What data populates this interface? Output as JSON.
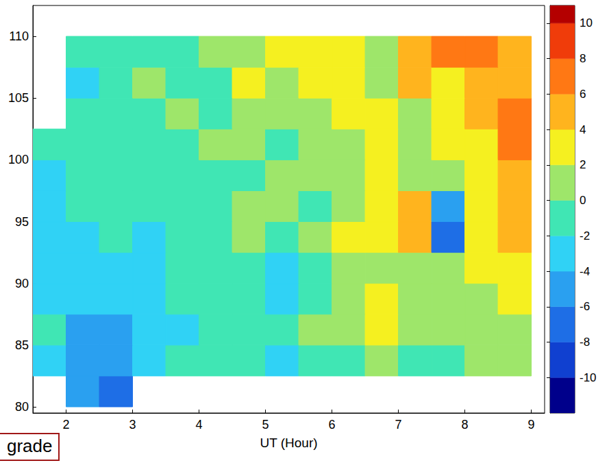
{
  "chart_data": {
    "type": "heatmap",
    "x_label": "UT (Hour)",
    "x": [
      1.75,
      2.25,
      2.75,
      3.25,
      3.75,
      4.25,
      4.75,
      5.25,
      5.75,
      6.25,
      6.75,
      7.25,
      7.75,
      8.25,
      8.75
    ],
    "y": [
      81.25,
      83.75,
      86.25,
      88.75,
      91.25,
      93.75,
      96.25,
      98.75,
      101.25,
      103.75,
      106.25,
      108.75
    ],
    "cells": [
      [
        null,
        -6,
        -7,
        null,
        null,
        null,
        null,
        null,
        null,
        null,
        null,
        null,
        null,
        null,
        null
      ],
      [
        -3,
        -5,
        -6,
        -4,
        -2,
        -2,
        -2,
        -3,
        -2,
        -1,
        0,
        -1,
        -1,
        0,
        1
      ],
      [
        -2,
        -5,
        -5,
        -3,
        -3,
        -2,
        -1,
        -1,
        0,
        1,
        2,
        1,
        1,
        1,
        1
      ],
      [
        -3,
        -4,
        -4,
        -3,
        -2,
        -1,
        -2,
        -3,
        -2,
        1,
        2,
        1,
        1,
        1,
        2
      ],
      [
        -3,
        -3,
        -3,
        -4,
        -2,
        -1,
        -2,
        -3,
        -2,
        0,
        1,
        1,
        1,
        2,
        3
      ],
      [
        -3,
        -3,
        -2,
        -3,
        -2,
        -1,
        0,
        -1,
        0,
        2,
        2,
        5,
        -8,
        3,
        5
      ],
      [
        -3,
        -2,
        -2,
        -1,
        -1,
        -1,
        0,
        0,
        -1,
        1,
        3,
        4,
        -6,
        2,
        4
      ],
      [
        -3,
        -2,
        -1,
        -2,
        -1,
        -1,
        -1,
        0,
        0,
        1,
        2,
        1,
        1,
        3,
        5
      ],
      [
        -2,
        -1,
        -1,
        -1,
        -2,
        0,
        0,
        -1,
        1,
        1,
        2,
        1,
        2,
        3,
        7
      ],
      [
        null,
        -1,
        -1,
        -1,
        0,
        -1,
        1,
        0,
        1,
        2,
        2,
        1,
        2,
        4,
        6
      ],
      [
        null,
        -3,
        -1,
        0,
        -1,
        -1,
        2,
        1,
        2,
        3,
        1,
        4,
        3,
        5,
        5
      ],
      [
        null,
        -2,
        -1,
        -1,
        -2,
        0,
        1,
        3,
        2,
        2,
        1,
        5,
        6,
        6,
        4
      ]
    ],
    "xlim": [
      1.5,
      9.2
    ],
    "xticks": [
      2,
      3,
      4,
      5,
      6,
      7,
      8,
      9
    ],
    "ylim": [
      79.5,
      112.5
    ],
    "yticks": [
      80,
      85,
      90,
      95,
      100,
      105,
      110
    ],
    "colorbar": {
      "range": [
        -12,
        11
      ],
      "ticks": [
        -10,
        -8,
        -6,
        -4,
        -2,
        0,
        2,
        4,
        6,
        8,
        10
      ],
      "levels": [
        -12,
        -10,
        -8,
        -6,
        -4,
        -2,
        0,
        2,
        4,
        6,
        8,
        10,
        11
      ],
      "colors": [
        "#00008b",
        "#1040d0",
        "#1e6ee6",
        "#2aa0f0",
        "#30d2f5",
        "#40e6b4",
        "#9ee66a",
        "#f5f020",
        "#ffb41e",
        "#ff7814",
        "#f03c0a",
        "#b40000"
      ]
    },
    "annotations": [
      "grade"
    ],
    "grid": false
  }
}
